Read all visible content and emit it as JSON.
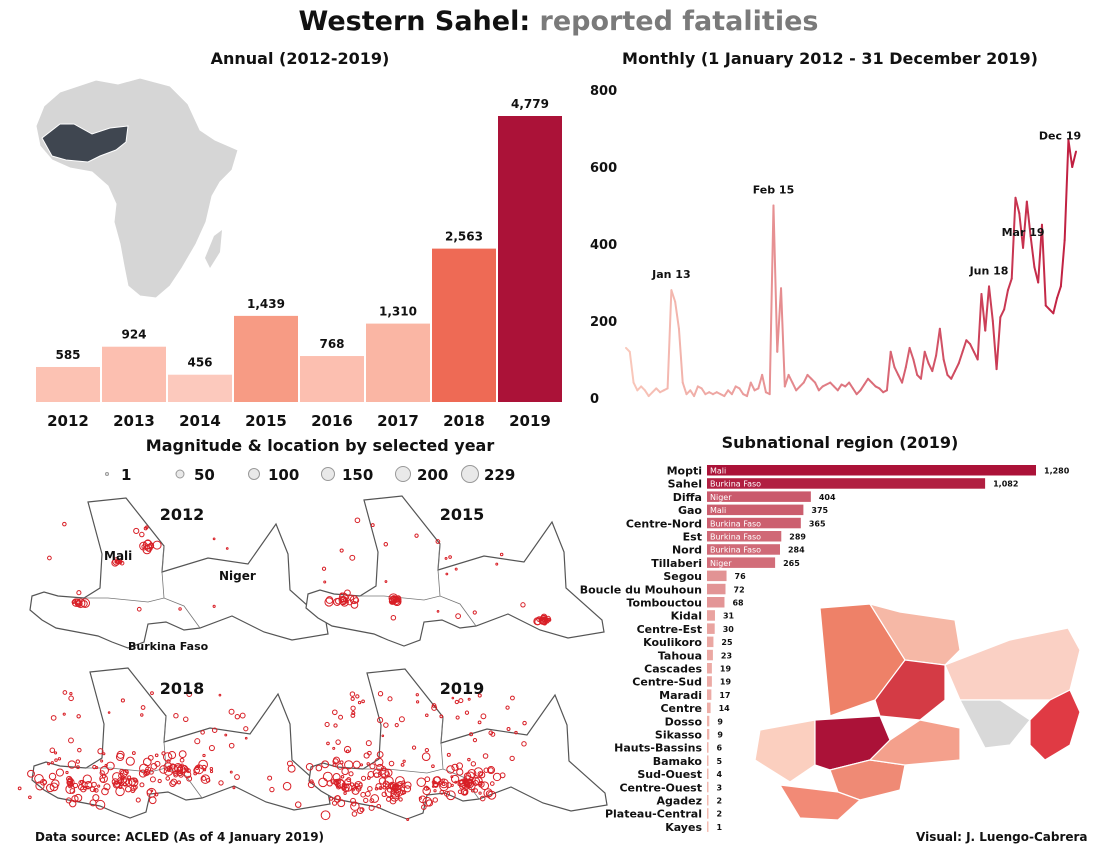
{
  "title": {
    "main": "Western Sahel:",
    "sub": "reported fatalities"
  },
  "colors": {
    "bar_scale": [
      "#fcc2b3",
      "#fcbfb0",
      "#fcc9bd",
      "#f79b84",
      "#fcbfb0",
      "#fab6a4",
      "#ee6a55",
      "#ab1238"
    ],
    "line_start": "#f9c8bb",
    "line_end": "#c01d3f",
    "dot": "#d81f26",
    "dark": "#3f4650",
    "gray": "#d9d9d9"
  },
  "map_labels": {
    "mali": "Mali",
    "niger": "Niger",
    "burkina": "Burkina Faso"
  },
  "legend_values": [
    "1",
    "50",
    "100",
    "150",
    "200",
    "229"
  ],
  "footer": {
    "source": "Data source: ACLED (As of 4 January 2019)",
    "credit": "Visual: J. Luengo-Cabrera"
  },
  "chart_data": [
    {
      "type": "bar",
      "title": "Annual (2012-2019)",
      "categories": [
        "2012",
        "2013",
        "2014",
        "2015",
        "2016",
        "2017",
        "2018",
        "2019"
      ],
      "values": [
        585,
        924,
        456,
        1439,
        768,
        1310,
        2563,
        4779
      ],
      "value_labels": [
        "585",
        "924",
        "456",
        "1,439",
        "768",
        "1,310",
        "2,563",
        "4,779"
      ],
      "ylim": [
        0,
        4779
      ]
    },
    {
      "type": "line",
      "title": "Monthly (1 January 2012 - 31 December 2019)",
      "yticks": [
        "800",
        "600",
        "400",
        "200",
        "0"
      ],
      "ylim": [
        0,
        800
      ],
      "values": [
        130,
        120,
        40,
        20,
        30,
        20,
        5,
        15,
        25,
        15,
        20,
        25,
        280,
        250,
        180,
        40,
        10,
        20,
        5,
        30,
        25,
        10,
        15,
        10,
        15,
        10,
        5,
        20,
        10,
        30,
        25,
        10,
        5,
        40,
        20,
        25,
        60,
        15,
        10,
        500,
        120,
        285,
        30,
        60,
        40,
        20,
        30,
        40,
        60,
        50,
        40,
        20,
        30,
        35,
        40,
        30,
        20,
        35,
        30,
        40,
        25,
        10,
        20,
        35,
        50,
        40,
        30,
        25,
        15,
        20,
        120,
        80,
        60,
        40,
        80,
        130,
        100,
        60,
        50,
        120,
        90,
        70,
        110,
        180,
        100,
        60,
        50,
        70,
        90,
        120,
        150,
        140,
        120,
        100,
        270,
        175,
        290,
        200,
        75,
        210,
        230,
        280,
        310,
        520,
        480,
        390,
        510,
        420,
        340,
        300,
        450,
        240,
        230,
        220,
        260,
        290,
        410,
        670,
        600,
        640
      ],
      "annotations": [
        {
          "label": "Jan 13",
          "index": 12
        },
        {
          "label": "Feb 15",
          "index": 39
        },
        {
          "label": "Jun 18",
          "index": 96
        },
        {
          "label": "Mar 19",
          "index": 105
        },
        {
          "label": "Dec 19",
          "index": 119
        }
      ]
    },
    {
      "type": "bar",
      "title": "Subnational region (2019)",
      "categories": [
        "Mopti",
        "Sahel",
        "Diffa",
        "Gao",
        "Centre-Nord",
        "Est",
        "Nord",
        "Tillaberi",
        "Segou",
        "Boucle du Mouhoun",
        "Tombouctou",
        "Kidal",
        "Centre-Est",
        "Koulikoro",
        "Tahoua",
        "Cascades",
        "Centre-Sud",
        "Maradi",
        "Centre",
        "Dosso",
        "Sikasso",
        "Hauts-Bassins",
        "Bamako",
        "Sud-Ouest",
        "Centre-Ouest",
        "Agadez",
        "Plateau-Central",
        "Kayes"
      ],
      "values": [
        1280,
        1082,
        404,
        375,
        365,
        289,
        284,
        265,
        76,
        72,
        68,
        31,
        30,
        25,
        23,
        19,
        19,
        17,
        14,
        9,
        9,
        6,
        5,
        4,
        3,
        2,
        2,
        1
      ],
      "value_labels": [
        "1,280",
        "1,082",
        "404",
        "375",
        "365",
        "289",
        "284",
        "265",
        "76",
        "72",
        "68",
        "31",
        "30",
        "25",
        "23",
        "19",
        "19",
        "17",
        "14",
        "9",
        "9",
        "6",
        "5",
        "4",
        "3",
        "2",
        "2",
        "1"
      ],
      "countries": [
        "Mali",
        "Burkina Faso",
        "Niger",
        "Mali",
        "Burkina Faso",
        "Burkina Faso",
        "Burkina Faso",
        "Niger",
        "",
        "",
        "",
        "",
        "",
        "",
        "",
        "",
        "",
        "",
        "",
        "",
        "",
        "",
        "",
        "",
        "",
        "",
        "",
        ""
      ],
      "xlim": [
        0,
        1280
      ]
    },
    {
      "type": "scatter",
      "title": "Magnitude & location by selected year",
      "panels": [
        "2012",
        "2015",
        "2018",
        "2019"
      ],
      "size_legend": [
        1,
        50,
        100,
        150,
        200,
        229
      ]
    }
  ]
}
